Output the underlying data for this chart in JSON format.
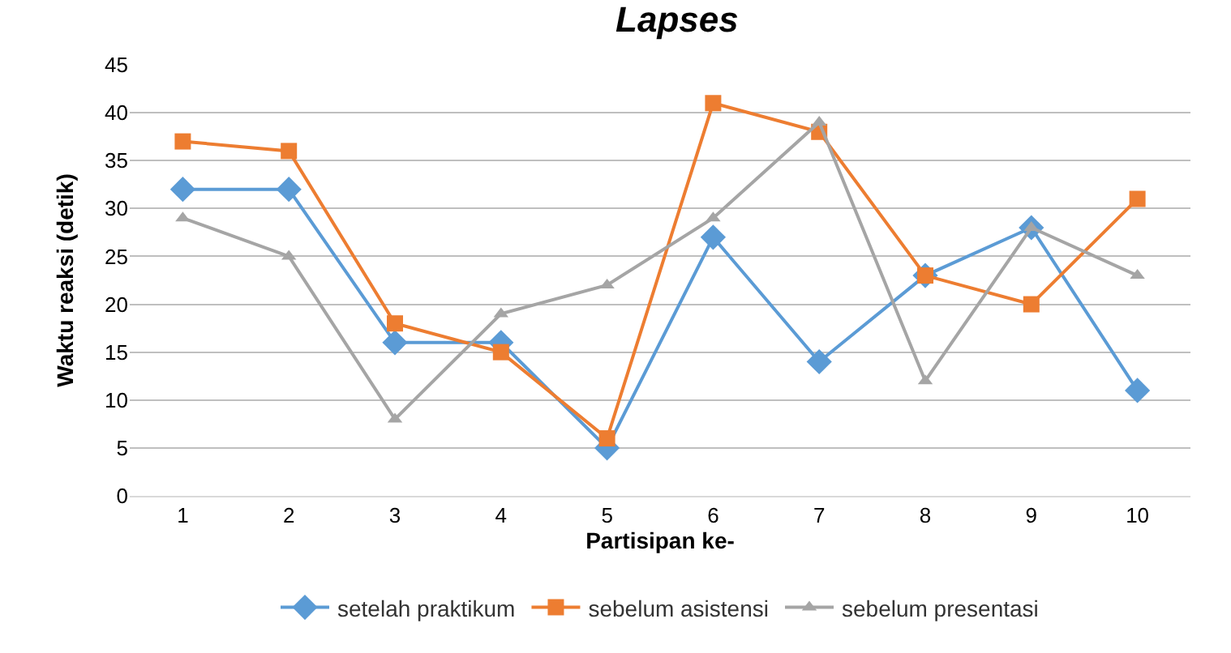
{
  "chart_data": {
    "type": "line",
    "title": "Lapses",
    "xlabel": "Partisipan ke-",
    "ylabel": "Waktu reaksi (detik)",
    "categories": [
      "1",
      "2",
      "3",
      "4",
      "5",
      "6",
      "7",
      "8",
      "9",
      "10"
    ],
    "series": [
      {
        "name": "setelah praktikum",
        "color": "#5b9bd5",
        "marker": "diamond",
        "values": [
          32,
          32,
          16,
          16,
          5,
          27,
          14,
          23,
          28,
          11
        ]
      },
      {
        "name": "sebelum asistensi",
        "color": "#ed7d31",
        "marker": "square",
        "values": [
          37,
          36,
          18,
          15,
          6,
          41,
          38,
          23,
          20,
          31
        ]
      },
      {
        "name": "sebelum presentasi",
        "color": "#a5a5a5",
        "marker": "triangle",
        "values": [
          29,
          25,
          8,
          19,
          22,
          29,
          39,
          12,
          28,
          23
        ]
      }
    ],
    "ylim": [
      0,
      45
    ],
    "yticks": [
      0,
      5,
      10,
      15,
      20,
      25,
      30,
      35,
      40,
      45
    ],
    "grid": "y",
    "legend": "bottom"
  }
}
